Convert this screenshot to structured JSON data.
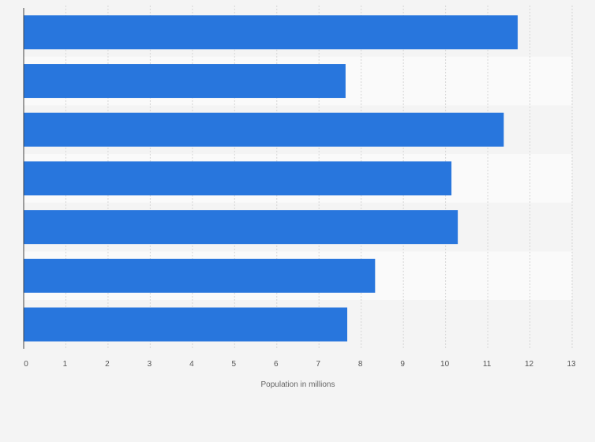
{
  "chart_data": {
    "type": "bar",
    "orientation": "horizontal",
    "categories": [
      "",
      "",
      "",
      "",
      "",
      "",
      ""
    ],
    "values": [
      11.71,
      7.63,
      11.38,
      10.14,
      10.29,
      8.33,
      7.67
    ],
    "title": "",
    "xlabel": "Population in millions",
    "ylabel": "",
    "xlim": [
      0,
      13
    ],
    "x_ticks": [
      0,
      1,
      2,
      3,
      4,
      5,
      6,
      7,
      8,
      9,
      10,
      11,
      12,
      13
    ],
    "x_tick_labels": [
      "0",
      "1",
      "2",
      "3",
      "4",
      "5",
      "6",
      "7",
      "8",
      "9",
      "10",
      "11",
      "12",
      "13"
    ],
    "grid": true,
    "grid_style": "dashed-vertical",
    "legend": "none",
    "bar_color": "#2876dd",
    "band_colors": [
      "#f4f4f4",
      "#fafafa"
    ]
  }
}
